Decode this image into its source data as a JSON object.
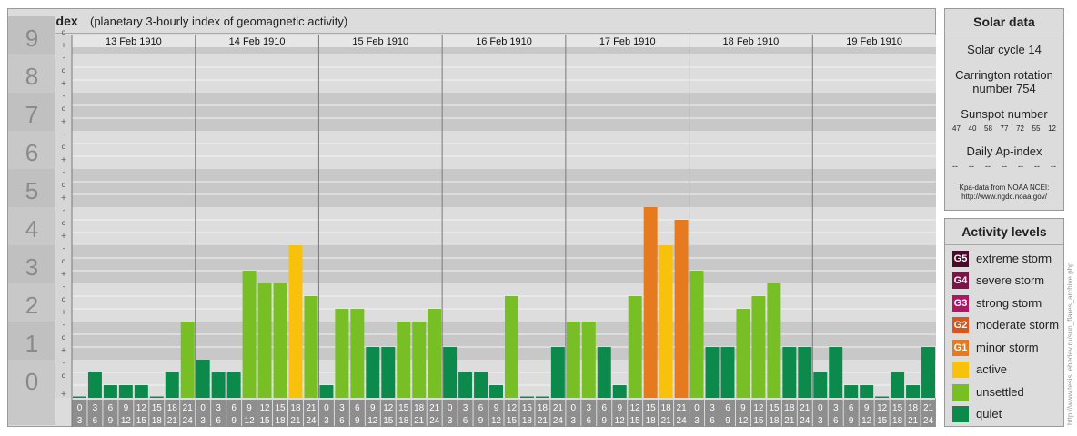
{
  "header": {
    "title": "Kpa-index",
    "subtitle": "(planetary 3-hourly index of geomagnetic activity)"
  },
  "chart_data": {
    "type": "bar",
    "ylim": [
      0,
      9
    ],
    "y_ticks": [
      "0",
      "1",
      "2",
      "3",
      "4",
      "5",
      "6",
      "7",
      "8",
      "9"
    ],
    "sub_ticks": [
      "+",
      "o",
      "-"
    ],
    "days": [
      "13 Feb 1910",
      "14 Feb 1910",
      "15 Feb 1910",
      "16 Feb 1910",
      "17 Feb 1910",
      "18 Feb 1910",
      "19 Feb 1910"
    ],
    "interval_labels": [
      [
        "0",
        "3"
      ],
      [
        "3",
        "6"
      ],
      [
        "6",
        "9"
      ],
      [
        "9",
        "12"
      ],
      [
        "12",
        "15"
      ],
      [
        "15",
        "18"
      ],
      [
        "18",
        "21"
      ],
      [
        "21",
        "24"
      ]
    ],
    "values": [
      0.0,
      0.667,
      0.333,
      0.333,
      0.333,
      0.0,
      0.667,
      2.0,
      1.0,
      0.667,
      0.667,
      3.333,
      3.0,
      3.0,
      4.0,
      2.667,
      0.333,
      2.333,
      2.333,
      1.333,
      1.333,
      2.0,
      2.0,
      2.333,
      1.333,
      0.667,
      0.667,
      0.333,
      2.667,
      0.0,
      0.0,
      1.333,
      2.0,
      2.0,
      1.333,
      0.333,
      2.667,
      5.0,
      4.0,
      4.667,
      3.333,
      1.333,
      1.333,
      2.333,
      2.667,
      3.0,
      1.333,
      1.333,
      0.667,
      1.333,
      0.333,
      0.333,
      0.0,
      0.667,
      0.333,
      1.333
    ],
    "colors": {
      "quiet": "#0b8a4c",
      "unsettled": "#78bf26",
      "active": "#f8c20c",
      "minor_storm": "#e57a1f",
      "band_dark": "#c8c8c8",
      "band_light": "#dddddd",
      "grid": "#f2f2f2",
      "separator": "#7a7a7a",
      "tick_box": "#8e8e8e"
    }
  },
  "solar": {
    "title": "Solar data",
    "cycle": "Solar cycle 14",
    "carrington_line1": "Carrington rotation",
    "carrington_line2": "number 754",
    "sunspot_label": "Sunspot number",
    "sunspots": [
      "47",
      "40",
      "58",
      "77",
      "72",
      "55",
      "12"
    ],
    "ap_label": "Daily Ap-index",
    "ap_values": [
      "--",
      "--",
      "--",
      "--",
      "--",
      "--",
      "--"
    ],
    "source_line1": "Kpa-data from NOAA NCEI:",
    "source_line2": "http://www.ngdc.noaa.gov/"
  },
  "levels": {
    "title": "Activity levels",
    "items": [
      {
        "badge": "G5",
        "label": "extreme storm",
        "color": "#4a0a2a"
      },
      {
        "badge": "G4",
        "label": "severe storm",
        "color": "#7a1548"
      },
      {
        "badge": "G3",
        "label": "strong storm",
        "color": "#b01566"
      },
      {
        "badge": "G2",
        "label": "moderate storm",
        "color": "#d8561e"
      },
      {
        "badge": "G1",
        "label": "minor storm",
        "color": "#e57a1f"
      },
      {
        "badge": "",
        "label": "active",
        "color": "#f8c20c"
      },
      {
        "badge": "",
        "label": "unsettled",
        "color": "#78bf26"
      },
      {
        "badge": "",
        "label": "quiet",
        "color": "#0b8a4c"
      }
    ]
  },
  "watermark": "http://www.tesis.lebedev.ru/sun_flares_archive.php"
}
